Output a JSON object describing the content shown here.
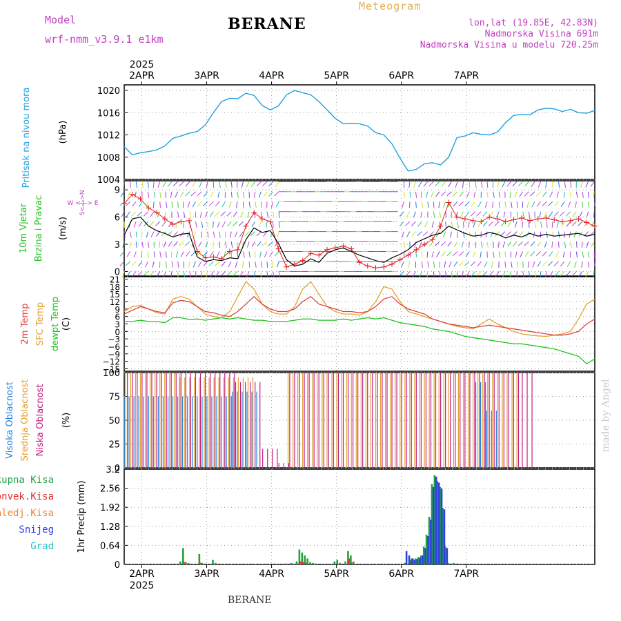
{
  "header": {
    "model_label": "Model",
    "model_name": "wrf-nmm_v3.9.1 e1km",
    "station": "BERANE",
    "product": "Meteogram",
    "coords": "lon,lat (19.85E, 42.83N)",
    "elevation": "Nadmorska Visina 691m",
    "model_elevation": "Nadmorska Visina u modelu 720.25m",
    "footer_station": "BERANE",
    "watermark": "made by Angel"
  },
  "time_axis": {
    "year": "2025",
    "days": [
      "2APR",
      "3APR",
      "4APR",
      "5APR",
      "6APR",
      "7APR"
    ]
  },
  "colors": {
    "pressure": "#1fa0e0",
    "wind_speed": "#000000",
    "wind_gust": "#e02020",
    "temp_2m": "#e04040",
    "temp_sfc": "#e0a030",
    "dewpoint": "#20c020",
    "cloud_high": "#2080e0",
    "cloud_mid": "#e0a030",
    "cloud_low": "#c02080",
    "precip_total": "#20a040",
    "precip_conv": "#e03030",
    "precip_snow": "#3040e0",
    "axis_label_purple": "#c040c0"
  },
  "chart_data": [
    {
      "type": "line",
      "title": "",
      "ylabel_left": "Pritisak na nivou mora",
      "ylabel_unit": "(hPa)",
      "ylim": [
        1004,
        1021
      ],
      "yticks": [
        "1020",
        "1016",
        "1012",
        "1008",
        "1004"
      ],
      "x_unit": "hours since 2025-04-01 12:00",
      "series": [
        {
          "name": "Pritisak na nivou mora",
          "x": [
            0,
            3,
            6,
            9,
            12,
            15,
            18,
            21,
            24,
            27,
            30,
            33,
            36,
            39,
            42,
            45,
            48,
            51,
            54,
            57,
            60,
            63,
            66,
            69,
            72,
            75,
            78,
            81,
            84,
            87,
            90,
            93,
            96,
            99,
            102,
            105,
            108,
            111,
            114,
            117,
            120,
            123,
            126,
            129,
            132,
            135,
            138,
            141,
            144,
            147,
            150,
            153,
            156,
            159,
            162,
            165,
            168,
            171,
            174
          ],
          "values": [
            1009.9,
            1008.4,
            1008.8,
            1009.0,
            1009.3,
            1010.0,
            1011.4,
            1011.8,
            1012.3,
            1012.6,
            1013.8,
            1016.0,
            1018.0,
            1018.6,
            1018.5,
            1019.5,
            1019.1,
            1017.3,
            1016.5,
            1017.2,
            1019.2,
            1020.0,
            1019.6,
            1019.2,
            1018.0,
            1016.5,
            1015.0,
            1014.0,
            1014.1,
            1014.0,
            1013.6,
            1012.4,
            1012.0,
            1010.4,
            1007.8,
            1005.5,
            1005.8,
            1006.8,
            1007.0,
            1006.6,
            1008.0,
            1011.5,
            1011.8,
            1012.4,
            1012.1,
            1012.0,
            1012.5,
            1014.2,
            1015.5,
            1015.7,
            1015.6,
            1016.5,
            1016.8,
            1016.7,
            1016.2,
            1016.6,
            1016.0,
            1015.9,
            1016.4
          ]
        }
      ]
    },
    {
      "type": "line",
      "title": "",
      "ylabel_left": [
        "10m Vjetar",
        "Brzina i Pravac"
      ],
      "ylabel_unit": "(m/s)",
      "compass": "W <-|-> E",
      "compass_vertical": "S<-|->N",
      "ylim": [
        -0.5,
        10
      ],
      "yticks": [
        "9",
        "6",
        "3",
        "0"
      ],
      "x_unit": "hours since 2025-04-01 12:00",
      "series": [
        {
          "name": "Brzina",
          "x": [
            0,
            3,
            6,
            9,
            12,
            15,
            18,
            21,
            24,
            27,
            30,
            33,
            36,
            39,
            42,
            45,
            48,
            51,
            54,
            57,
            60,
            63,
            66,
            69,
            72,
            75,
            78,
            81,
            84,
            87,
            90,
            93,
            96,
            99,
            102,
            105,
            108,
            111,
            114,
            117,
            120,
            123,
            126,
            129,
            132,
            135,
            138,
            141,
            144,
            147,
            150,
            153,
            156,
            159,
            162,
            165,
            168,
            171,
            174
          ],
          "values": [
            4.0,
            5.8,
            6.0,
            5.0,
            4.5,
            4.2,
            3.8,
            4.1,
            4.2,
            1.6,
            1.1,
            1.3,
            1.2,
            1.5,
            1.4,
            3.5,
            4.8,
            4.3,
            4.5,
            3.1,
            1.3,
            0.6,
            0.8,
            1.4,
            1.0,
            2.0,
            2.4,
            2.6,
            2.2,
            1.8,
            1.5,
            1.2,
            1.0,
            1.5,
            1.9,
            2.4,
            3.2,
            3.6,
            4.0,
            4.2,
            5.0,
            4.6,
            4.2,
            3.9,
            4.0,
            4.3,
            4.1,
            3.7,
            4.0,
            3.8,
            4.2,
            3.9,
            4.1,
            3.9,
            4.0,
            4.1,
            4.2,
            3.9,
            4.1
          ]
        },
        {
          "name": "Udari",
          "x": [
            0,
            3,
            6,
            9,
            12,
            15,
            18,
            21,
            24,
            27,
            30,
            33,
            36,
            39,
            42,
            45,
            48,
            51,
            54,
            57,
            60,
            63,
            66,
            69,
            72,
            75,
            78,
            81,
            84,
            87,
            90,
            93,
            96,
            99,
            102,
            105,
            108,
            111,
            114,
            117,
            120,
            123,
            126,
            129,
            132,
            135,
            138,
            141,
            144,
            147,
            150,
            153,
            156,
            159,
            162,
            165,
            168,
            171,
            174
          ],
          "values": [
            7.5,
            8.5,
            8.0,
            7.0,
            6.5,
            5.8,
            5.2,
            5.5,
            5.6,
            2.2,
            1.5,
            1.6,
            1.4,
            2.2,
            2.4,
            5.0,
            6.5,
            5.8,
            5.5,
            2.5,
            0.5,
            0.8,
            1.2,
            2.0,
            1.8,
            2.4,
            2.6,
            2.8,
            2.5,
            1.0,
            0.6,
            0.4,
            0.5,
            0.8,
            1.3,
            1.8,
            2.4,
            3.0,
            3.5,
            5.0,
            7.6,
            6.0,
            5.8,
            5.6,
            5.5,
            6.0,
            5.8,
            5.5,
            5.7,
            5.9,
            5.6,
            5.8,
            5.9,
            5.7,
            5.5,
            5.6,
            5.8,
            5.4,
            5.0
          ]
        }
      ]
    },
    {
      "type": "line",
      "title": "",
      "ylabel_left": [
        "2m Temp",
        "SFC Temp",
        "dewpt Temp"
      ],
      "ylabel_unit": "(C)",
      "ylim": [
        -16,
        22
      ],
      "yticks": [
        "21",
        "18",
        "15",
        "12",
        "9",
        "6",
        "3",
        "0",
        "−3",
        "−6",
        "−9",
        "−12",
        "−15"
      ],
      "x_unit": "hours since 2025-04-01 12:00",
      "series": [
        {
          "name": "2m Temp",
          "x": [
            0,
            3,
            6,
            9,
            12,
            15,
            18,
            21,
            24,
            27,
            30,
            33,
            36,
            39,
            42,
            45,
            48,
            51,
            54,
            57,
            60,
            63,
            66,
            69,
            72,
            75,
            78,
            81,
            84,
            87,
            90,
            93,
            96,
            99,
            102,
            105,
            108,
            111,
            114,
            117,
            120,
            123,
            126,
            129,
            132,
            135,
            138,
            141,
            144,
            147,
            150,
            153,
            156,
            159,
            162,
            165,
            168,
            171,
            174
          ],
          "values": [
            7,
            8.5,
            10,
            9,
            8,
            7.5,
            11.5,
            12.5,
            12,
            10,
            8,
            7.5,
            6.5,
            6,
            8,
            11,
            14,
            11,
            9,
            8,
            8,
            9,
            12,
            14,
            11,
            10,
            9,
            8,
            8,
            7.5,
            8,
            10,
            13,
            14,
            11,
            9,
            8,
            7,
            5,
            4,
            3,
            2.5,
            2,
            1.5,
            2,
            2.5,
            2,
            1.5,
            1,
            0.5,
            0,
            -0.5,
            -1,
            -1.5,
            -1.5,
            -1,
            0,
            3,
            5
          ]
        },
        {
          "name": "SFC Temp",
          "x": [
            0,
            3,
            6,
            9,
            12,
            15,
            18,
            21,
            24,
            27,
            30,
            33,
            36,
            39,
            42,
            45,
            48,
            51,
            54,
            57,
            60,
            63,
            66,
            69,
            72,
            75,
            78,
            81,
            84,
            87,
            90,
            93,
            96,
            99,
            102,
            105,
            108,
            111,
            114,
            117,
            120,
            123,
            126,
            129,
            132,
            135,
            138,
            141,
            144,
            147,
            150,
            153,
            156,
            159,
            162,
            165,
            168,
            171,
            174
          ],
          "values": [
            8,
            10,
            10.5,
            9,
            7.5,
            7,
            13,
            14,
            13,
            10,
            7,
            6,
            5.5,
            8,
            14,
            20,
            17,
            11,
            8,
            7,
            7,
            10,
            17,
            20,
            15,
            10,
            8,
            7,
            7,
            6.5,
            8,
            12,
            18,
            17,
            12,
            8,
            7,
            6,
            5,
            4,
            3,
            2,
            1.5,
            1,
            3,
            5,
            3,
            1.5,
            0,
            -1,
            -1.5,
            -1.8,
            -2,
            -1.5,
            -1,
            0,
            5,
            11,
            13
          ]
        },
        {
          "name": "dewpt Temp",
          "x": [
            0,
            3,
            6,
            9,
            12,
            15,
            18,
            21,
            24,
            27,
            30,
            33,
            36,
            39,
            42,
            45,
            48,
            51,
            54,
            57,
            60,
            63,
            66,
            69,
            72,
            75,
            78,
            81,
            84,
            87,
            90,
            93,
            96,
            99,
            102,
            105,
            108,
            111,
            114,
            117,
            120,
            123,
            126,
            129,
            132,
            135,
            138,
            141,
            144,
            147,
            150,
            153,
            156,
            159,
            162,
            165,
            168,
            171,
            174
          ],
          "values": [
            4,
            4,
            4.5,
            4,
            4,
            3.5,
            5.5,
            5.5,
            4.8,
            5,
            4.5,
            5,
            5.5,
            5,
            5.5,
            5,
            4.5,
            4.5,
            4,
            4,
            4,
            4.5,
            5,
            5,
            4.5,
            4.5,
            4.5,
            5,
            4.5,
            5,
            5.5,
            5,
            5.5,
            4.5,
            3.5,
            3,
            2.5,
            2,
            1,
            0.5,
            0,
            -1,
            -2,
            -2.5,
            -3,
            -3.5,
            -4,
            -4.5,
            -5,
            -5,
            -5.5,
            -6,
            -6.5,
            -7,
            -8,
            -9,
            -10,
            -13,
            -11
          ]
        }
      ]
    },
    {
      "type": "bar",
      "title": "",
      "ylabel_left": [
        "Visoka Oblacnost",
        "Srednja Oblacnost",
        "Niska Oblacnost"
      ],
      "ylabel_unit": "(%)",
      "ylim": [
        0,
        100
      ],
      "yticks": [
        "100",
        "75",
        "50",
        "25",
        "0"
      ],
      "x_unit": "hours since 2025-04-01 12:00",
      "series": [
        {
          "name": "Visoka Oblacnost",
          "segments": [
            [
              0,
              40,
              75
            ],
            [
              40,
              50,
              80
            ],
            [
              130,
              134,
              90
            ],
            [
              134,
              138,
              60
            ]
          ]
        },
        {
          "name": "Srednja Oblacnost",
          "segments": [
            [
              0,
              20,
              100
            ],
            [
              20,
              48,
              95
            ],
            [
              60,
              146,
              100
            ]
          ]
        },
        {
          "name": "Niska Oblacnost",
          "segments": [
            [
              0,
              40,
              100
            ],
            [
              40,
              50,
              90
            ],
            [
              50,
              56,
              20
            ],
            [
              56,
              60,
              5
            ],
            [
              60,
              146,
              100
            ],
            [
              146,
              150,
              100
            ]
          ]
        }
      ]
    },
    {
      "type": "bar",
      "title": "",
      "ylabel_left": [
        "Ukupna Kisa",
        "Konvek.Kisa",
        "Zaledj.Kisa",
        "Snijeg",
        "Grad"
      ],
      "ylabel_unit": "1hr Precip (mm)",
      "ylim": [
        0,
        3.2
      ],
      "yticks": [
        "3.2",
        "2.56",
        "1.92",
        "1.28",
        "0.64",
        "0"
      ],
      "x_unit": "hours since 2025-04-01 12:00",
      "series": [
        {
          "name": "Ukupna Kisa",
          "x": [
            21,
            22,
            23,
            24,
            28,
            29,
            33,
            34,
            60,
            62,
            64,
            65,
            66,
            67,
            68,
            69,
            70,
            71,
            78,
            79,
            80,
            82,
            83,
            84,
            85,
            104,
            106,
            107,
            108,
            109,
            110,
            111,
            112,
            113,
            114,
            115,
            116,
            117,
            118,
            119,
            120,
            121,
            122,
            123
          ],
          "values": [
            0.1,
            0.55,
            0.08,
            0.05,
            0.35,
            0.05,
            0.15,
            0.05,
            0.03,
            0.05,
            0.1,
            0.5,
            0.4,
            0.3,
            0.2,
            0.08,
            0.05,
            0.03,
            0.1,
            0.15,
            0.05,
            0.1,
            0.45,
            0.3,
            0.1,
            0.05,
            0.15,
            0.2,
            0.2,
            0.25,
            0.3,
            0.6,
            1.0,
            1.6,
            2.7,
            3.0,
            2.8,
            2.6,
            1.9,
            0.6,
            0.05,
            0.03,
            0.05,
            0.03
          ]
        },
        {
          "name": "Konvek.Kisa",
          "x": [
            22,
            28,
            60,
            65,
            66,
            67,
            83,
            84
          ],
          "values": [
            0.08,
            0.06,
            0.02,
            0.1,
            0.08,
            0.06,
            0.2,
            0.06
          ]
        },
        {
          "name": "Snijeg",
          "x": [
            104,
            105,
            106,
            107,
            108,
            109,
            110,
            111,
            112,
            113,
            114,
            115,
            116,
            117,
            118,
            119
          ],
          "values": [
            0.45,
            0.3,
            0.2,
            0.15,
            0.18,
            0.22,
            0.3,
            0.55,
            0.95,
            1.5,
            2.6,
            2.95,
            2.75,
            2.55,
            1.85,
            0.55
          ]
        }
      ]
    }
  ]
}
